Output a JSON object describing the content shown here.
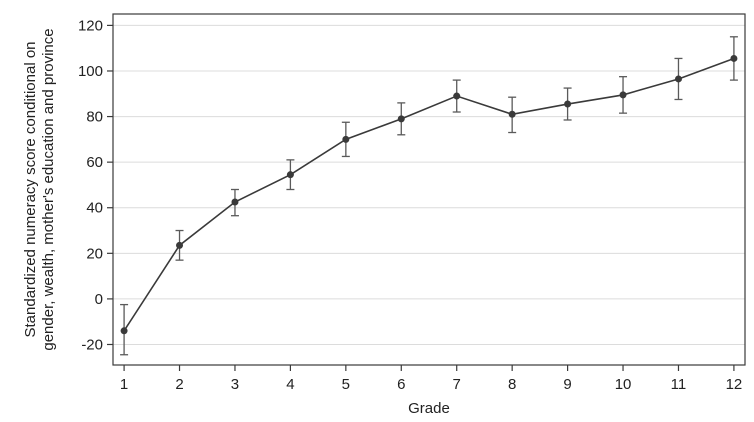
{
  "chart_data": {
    "type": "line",
    "xlabel": "Grade",
    "ylabel_lines": [
      "Standardized numeracy score conditional on",
      "gender, wealth, mother's education and province"
    ],
    "x": [
      1,
      2,
      3,
      4,
      5,
      6,
      7,
      8,
      9,
      10,
      11,
      12
    ],
    "series": [
      {
        "values": [
          -14,
          23.5,
          42.5,
          54.5,
          70,
          79,
          89,
          81,
          85.5,
          89.5,
          96.5,
          105.5
        ],
        "ci_low": [
          -24.5,
          17,
          36.5,
          48,
          62.5,
          72,
          82,
          73,
          78.5,
          81.5,
          87.5,
          96
        ],
        "ci_high": [
          -2.5,
          30,
          48,
          61,
          77.5,
          86,
          96,
          88.5,
          92.5,
          97.5,
          105.5,
          115
        ]
      }
    ],
    "xlim": [
      0.8,
      12.2
    ],
    "ylim": [
      -29,
      125
    ],
    "yticks": [
      -20,
      0,
      20,
      40,
      60,
      80,
      100,
      120
    ],
    "xticks": [
      1,
      2,
      3,
      4,
      5,
      6,
      7,
      8,
      9,
      10,
      11,
      12
    ],
    "grid": "horizontal",
    "colors": {
      "line": "#3a3a3a",
      "marker": "#3a3a3a",
      "error_bar": "#5a5a5a",
      "grid": "#dcdcdc",
      "frame": "#3a3a3a"
    }
  }
}
